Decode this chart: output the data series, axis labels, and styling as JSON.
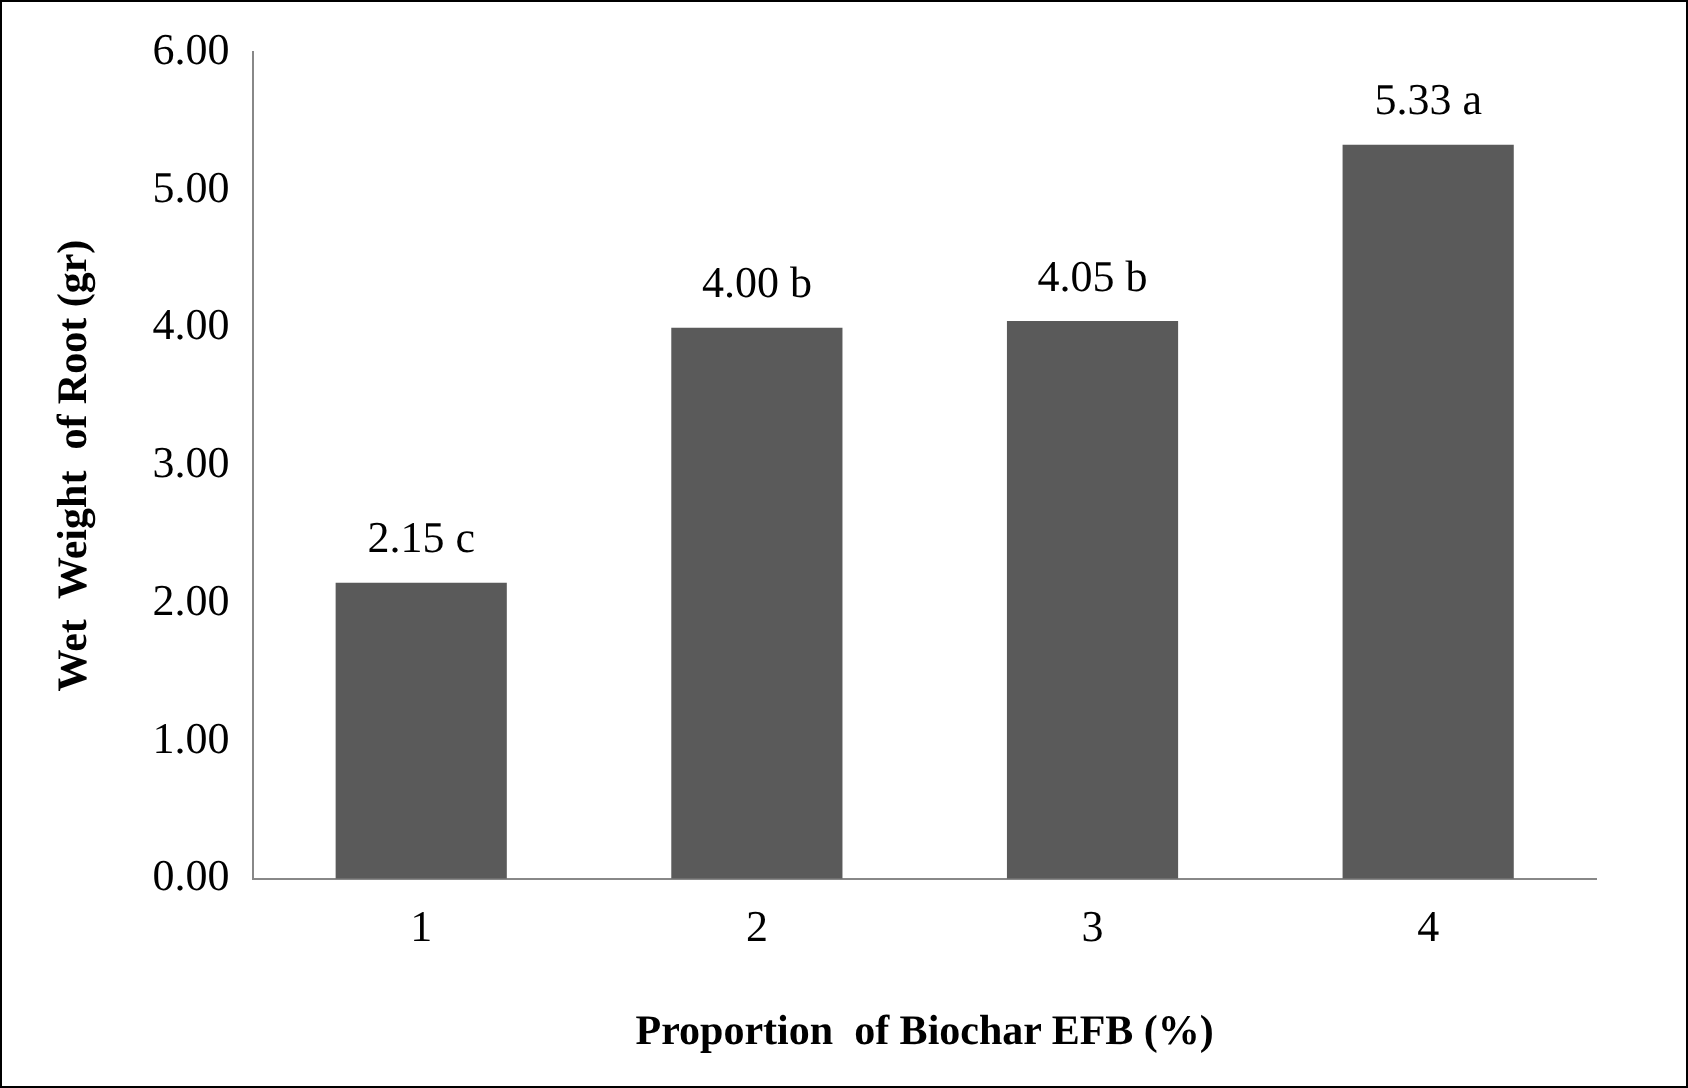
{
  "chart_data": {
    "type": "bar",
    "xlabel": "Proportion  of Biochar EFB (%)",
    "ylabel": "Wet  Weight  of Root (gr)",
    "categories": [
      "1",
      "2",
      "3",
      "4"
    ],
    "values": [
      2.15,
      4.0,
      4.05,
      5.33
    ],
    "value_labels": [
      "2.15 c",
      "4.00 b",
      "4.05 b",
      "5.33 a"
    ],
    "color": "#5a5a5a",
    "ylim": [
      0,
      6
    ],
    "yticks": [
      {
        "value": 0,
        "label": "0.00"
      },
      {
        "value": 1,
        "label": "1.00"
      },
      {
        "value": 2,
        "label": "2.00"
      },
      {
        "value": 3,
        "label": "3.00"
      },
      {
        "value": 4,
        "label": "4.00"
      },
      {
        "value": 5,
        "label": "5.00"
      },
      {
        "value": 6,
        "label": "6.00"
      }
    ],
    "grid": false,
    "legend": false
  }
}
